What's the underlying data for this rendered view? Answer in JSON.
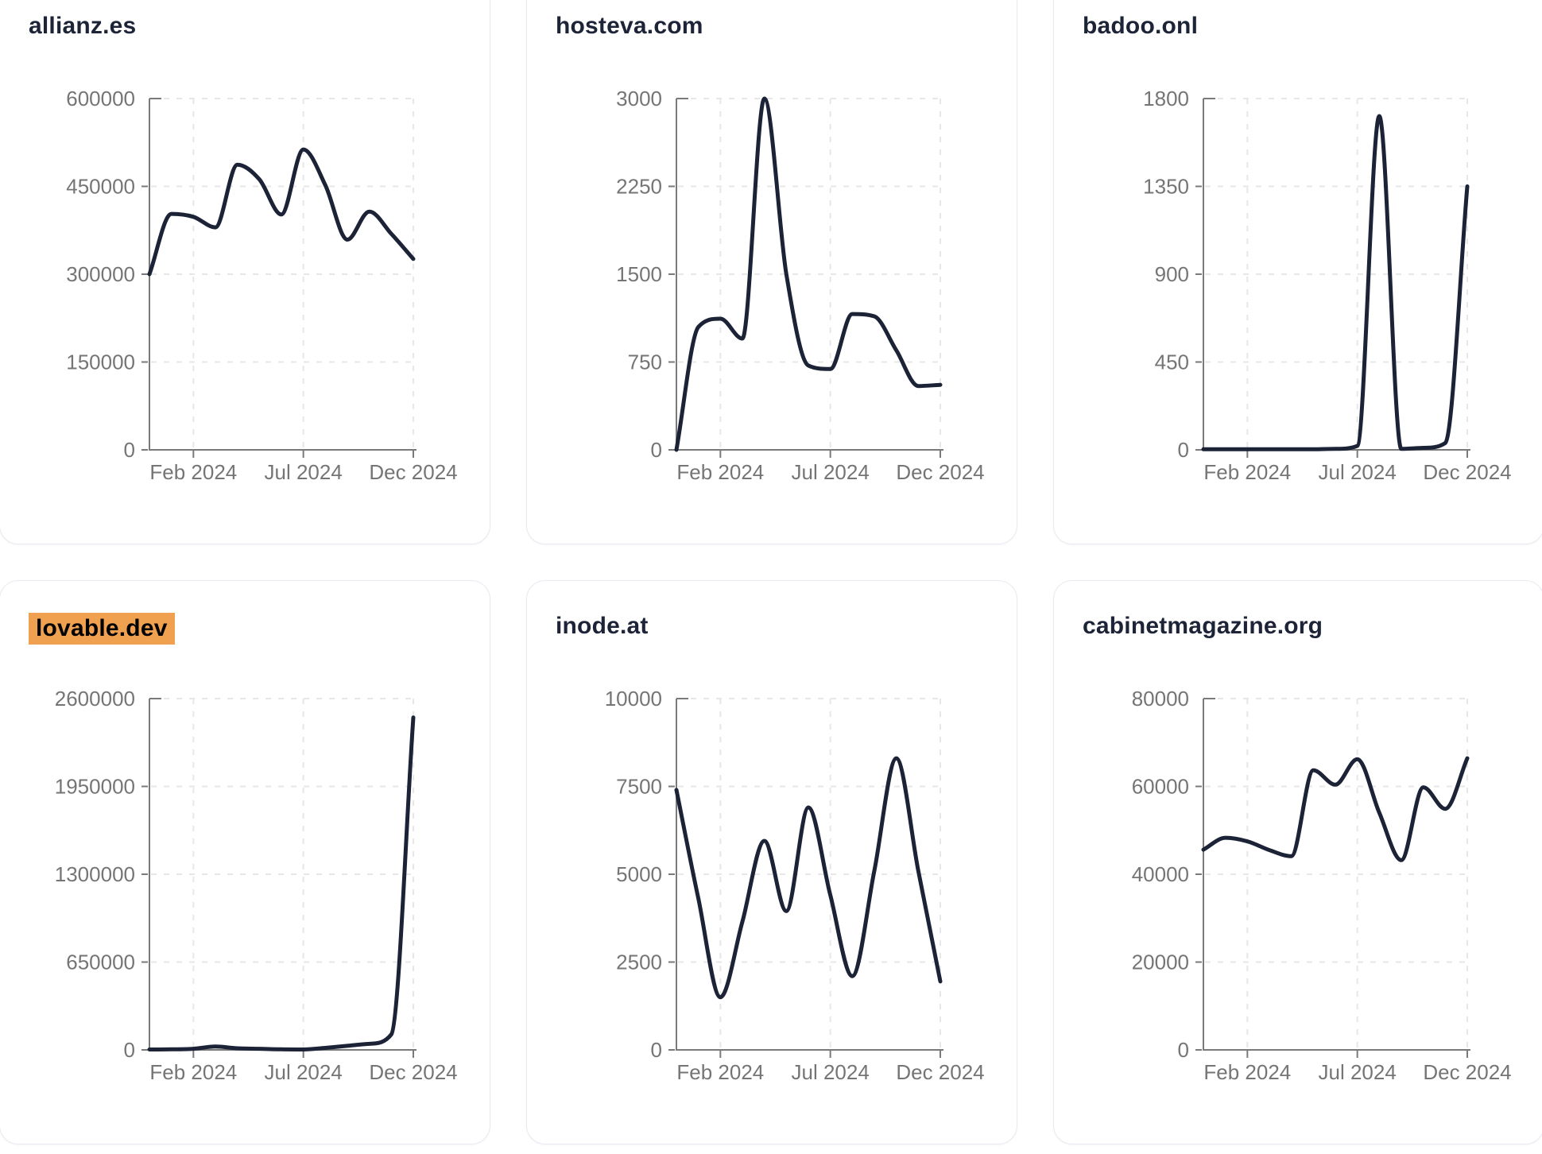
{
  "page": {
    "background": "#ffffff",
    "x_tick_labels": [
      "Feb 2024",
      "Jul 2024",
      "Dec 2024"
    ],
    "months": [
      "Dec 2023",
      "Jan 2024",
      "Feb 2024",
      "Mar 2024",
      "Apr 2024",
      "May 2024",
      "Jun 2024",
      "Jul 2024",
      "Aug 2024",
      "Sep 2024",
      "Oct 2024",
      "Nov 2024",
      "Dec 2024"
    ]
  },
  "styles": {
    "line_color": "#1c2337",
    "title_color": "#1d2438",
    "axis_color": "#7a7a7a",
    "tick_label_color": "#757575",
    "grid_color": "#e7e7ea",
    "highlight_color": "#efa14f",
    "card_border_color": "#e7eaf0"
  },
  "chart_data": [
    {
      "type": "line",
      "title": "allianz.es",
      "title_highlighted": false,
      "x": [
        "Dec 2023",
        "Jan 2024",
        "Feb 2024",
        "Mar 2024",
        "Apr 2024",
        "May 2024",
        "Jun 2024",
        "Jul 2024",
        "Aug 2024",
        "Sep 2024",
        "Oct 2024",
        "Nov 2024",
        "Dec 2024"
      ],
      "x_tick_labels": [
        "Feb 2024",
        "Jul 2024",
        "Dec 2024"
      ],
      "y_ticks": [
        0,
        150000,
        300000,
        450000,
        600000
      ],
      "ylim": [
        0,
        600000
      ],
      "values": [
        300000,
        403000,
        398000,
        380000,
        487000,
        462000,
        402000,
        513000,
        452000,
        359000,
        407000,
        369000,
        326000
      ]
    },
    {
      "type": "line",
      "title": "hosteva.com",
      "title_highlighted": false,
      "x": [
        "Dec 2023",
        "Jan 2024",
        "Feb 2024",
        "Mar 2024",
        "Apr 2024",
        "May 2024",
        "Jun 2024",
        "Jul 2024",
        "Aug 2024",
        "Sep 2024",
        "Oct 2024",
        "Nov 2024",
        "Dec 2024"
      ],
      "x_tick_labels": [
        "Feb 2024",
        "Jul 2024",
        "Dec 2024"
      ],
      "y_ticks": [
        0,
        750,
        1500,
        2250,
        3000
      ],
      "ylim": [
        0,
        3000
      ],
      "values": [
        0,
        1050,
        1120,
        950,
        3000,
        1500,
        720,
        690,
        1160,
        1140,
        850,
        545,
        555
      ]
    },
    {
      "type": "line",
      "title": "badoo.onl",
      "title_highlighted": false,
      "x": [
        "Dec 2023",
        "Jan 2024",
        "Feb 2024",
        "Mar 2024",
        "Apr 2024",
        "May 2024",
        "Jun 2024",
        "Jul 2024",
        "Aug 2024",
        "Sep 2024",
        "Oct 2024",
        "Nov 2024",
        "Dec 2024"
      ],
      "x_tick_labels": [
        "Feb 2024",
        "Jul 2024",
        "Dec 2024"
      ],
      "y_ticks": [
        0,
        450,
        900,
        1350,
        1800
      ],
      "ylim": [
        0,
        1800
      ],
      "values": [
        3,
        3,
        3,
        3,
        3,
        3,
        5,
        20,
        1710,
        5,
        10,
        35,
        1350
      ]
    },
    {
      "type": "line",
      "title": "lovable.dev",
      "title_highlighted": true,
      "x": [
        "Dec 2023",
        "Jan 2024",
        "Feb 2024",
        "Mar 2024",
        "Apr 2024",
        "May 2024",
        "Jun 2024",
        "Jul 2024",
        "Aug 2024",
        "Sep 2024",
        "Oct 2024",
        "Nov 2024",
        "Dec 2024"
      ],
      "x_tick_labels": [
        "Feb 2024",
        "Jul 2024",
        "Dec 2024"
      ],
      "y_ticks": [
        0,
        650000,
        1300000,
        1950000,
        2600000
      ],
      "ylim": [
        0,
        2600000
      ],
      "values": [
        3000,
        4000,
        8000,
        25000,
        12000,
        8000,
        4000,
        3000,
        15000,
        30000,
        45000,
        114000,
        2460000
      ]
    },
    {
      "type": "line",
      "title": "inode.at",
      "title_highlighted": false,
      "x": [
        "Dec 2023",
        "Jan 2024",
        "Feb 2024",
        "Mar 2024",
        "Apr 2024",
        "May 2024",
        "Jun 2024",
        "Jul 2024",
        "Aug 2024",
        "Sep 2024",
        "Oct 2024",
        "Nov 2024",
        "Dec 2024"
      ],
      "x_tick_labels": [
        "Feb 2024",
        "Jul 2024",
        "Dec 2024"
      ],
      "y_ticks": [
        0,
        2500,
        5000,
        7500,
        10000
      ],
      "ylim": [
        0,
        10000
      ],
      "values": [
        7400,
        4300,
        1500,
        3650,
        5950,
        3950,
        6900,
        4400,
        2100,
        5100,
        8300,
        5100,
        1950
      ]
    },
    {
      "type": "line",
      "title": "cabinetmagazine.org",
      "title_highlighted": false,
      "x": [
        "Dec 2023",
        "Jan 2024",
        "Feb 2024",
        "Mar 2024",
        "Apr 2024",
        "May 2024",
        "Jun 2024",
        "Jul 2024",
        "Aug 2024",
        "Sep 2024",
        "Oct 2024",
        "Nov 2024",
        "Dec 2024"
      ],
      "x_tick_labels": [
        "Feb 2024",
        "Jul 2024",
        "Dec 2024"
      ],
      "y_ticks": [
        0,
        20000,
        40000,
        60000,
        80000
      ],
      "ylim": [
        0,
        80000
      ],
      "values": [
        45600,
        48300,
        47500,
        45500,
        44100,
        63700,
        60400,
        66200,
        54000,
        43200,
        59800,
        54900,
        66400
      ]
    }
  ]
}
